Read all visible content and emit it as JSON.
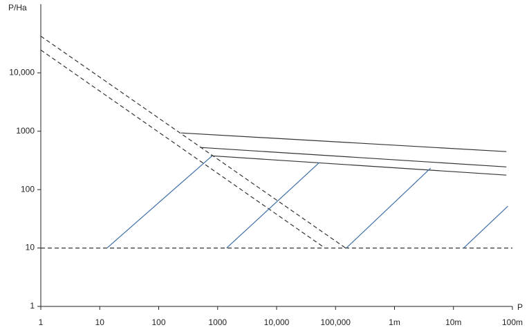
{
  "chart_data": {
    "type": "line",
    "x_label": "P",
    "y_label": "P/Ha",
    "xlog": true,
    "ylog": true,
    "xlim": [
      1,
      100000000
    ],
    "ylim": [
      1,
      150000
    ],
    "xticks": [
      1,
      10,
      100,
      1000,
      {
        "value": 10000,
        "label": "10,000"
      },
      {
        "value": 100000,
        "label": "100,000"
      },
      {
        "value": 1000000,
        "label": "1m"
      },
      {
        "value": 10000000,
        "label": "10m"
      },
      {
        "value": 100000000,
        "label": "100m"
      }
    ],
    "yticks": [
      1,
      10,
      100,
      1000,
      {
        "value": 10000,
        "label": "10,000"
      }
    ],
    "series": [
      {
        "color": "#333333",
        "dashed": true,
        "x": [
          1,
          148000
        ],
        "values": [
          42400,
          10
        ]
      },
      {
        "color": "#333333",
        "dashed": true,
        "x": [
          1,
          66000
        ],
        "values": [
          24600,
          10
        ]
      },
      {
        "color": "#333333",
        "dashed": true,
        "x": [
          1,
          100000000
        ],
        "values": [
          10,
          10
        ]
      },
      {
        "color": "#333333",
        "dashed": false,
        "x": [
          240,
          79000000
        ],
        "values": [
          935,
          447
        ]
      },
      {
        "color": "#333333",
        "dashed": false,
        "x": [
          510,
          79000000
        ],
        "values": [
          527,
          245
        ]
      },
      {
        "color": "#333333",
        "dashed": false,
        "x": [
          765,
          79000000
        ],
        "values": [
          380,
          177
        ]
      },
      {
        "color": "#3d6ea8",
        "dashed": false,
        "x": [
          13.3,
          810
        ],
        "values": [
          10,
          380
        ]
      },
      {
        "color": "#3d6ea8",
        "dashed": false,
        "x": [
          1420,
          53000
        ],
        "values": [
          10,
          290
        ]
      },
      {
        "color": "#3d6ea8",
        "dashed": false,
        "x": [
          152000,
          4100000
        ],
        "values": [
          10,
          233
        ]
      },
      {
        "color": "#3d6ea8",
        "dashed": false,
        "x": [
          14900000,
          84000000
        ],
        "values": [
          10,
          52
        ]
      }
    ]
  }
}
